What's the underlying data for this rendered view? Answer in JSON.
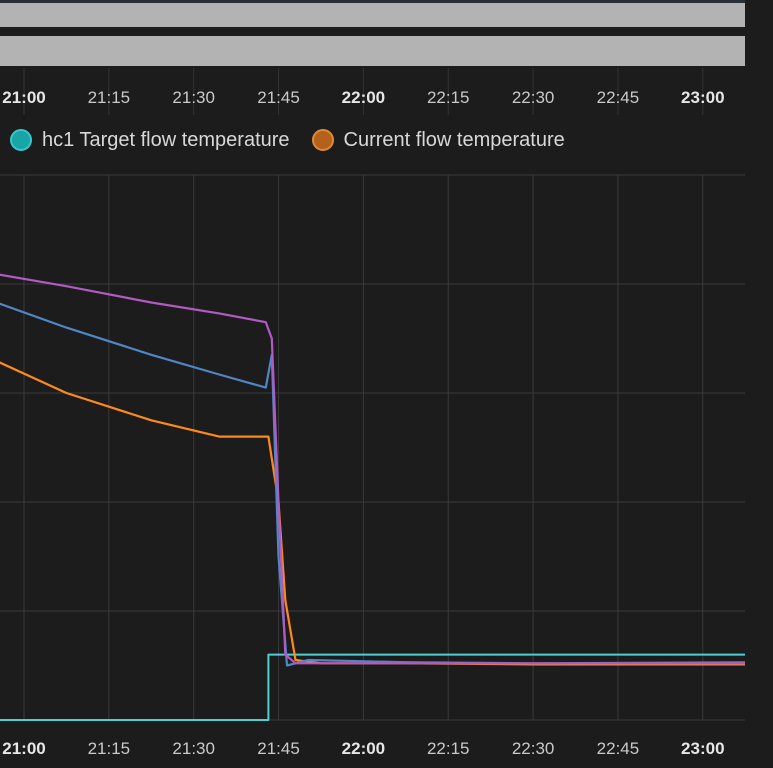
{
  "chart_data": {
    "type": "line",
    "x_ticks": [
      {
        "label": "21:00",
        "major": true
      },
      {
        "label": "21:15",
        "major": false
      },
      {
        "label": "21:30",
        "major": false
      },
      {
        "label": "21:45",
        "major": false
      },
      {
        "label": "22:00",
        "major": true
      },
      {
        "label": "22:15",
        "major": false
      },
      {
        "label": "22:30",
        "major": false
      },
      {
        "label": "22:45",
        "major": false
      },
      {
        "label": "23:00",
        "major": true
      }
    ],
    "legend": [
      {
        "name": "hc1 Target flow temperature",
        "color": "#17a5a7"
      },
      {
        "name": "Current flow temperature",
        "color": "#c0651b"
      }
    ],
    "series": [
      {
        "name": "hc1 Target flow temperature",
        "color": "#4fd0d0",
        "step": true,
        "points": [
          [
            -0.4,
            0.0
          ],
          [
            2.88,
            0.0
          ],
          [
            2.88,
            0.6
          ],
          [
            8.7,
            0.6
          ]
        ]
      },
      {
        "name": "Current flow temperature",
        "color": "#ff8a1c",
        "points": [
          [
            -0.4,
            3.32
          ],
          [
            0.5,
            3.0
          ],
          [
            1.5,
            2.75
          ],
          [
            2.3,
            2.6
          ],
          [
            2.88,
            2.6
          ],
          [
            3.0,
            2.0
          ],
          [
            3.08,
            1.1
          ],
          [
            3.2,
            0.55
          ],
          [
            3.5,
            0.52
          ],
          [
            4.5,
            0.52
          ],
          [
            6.0,
            0.51
          ],
          [
            8.7,
            0.51
          ]
        ]
      },
      {
        "color": "#4f86c6",
        "points": [
          [
            -0.4,
            3.85
          ],
          [
            0.5,
            3.6
          ],
          [
            1.5,
            3.35
          ],
          [
            2.3,
            3.17
          ],
          [
            2.85,
            3.05
          ],
          [
            2.92,
            3.35
          ],
          [
            3.0,
            1.5
          ],
          [
            3.1,
            0.5
          ],
          [
            3.35,
            0.55
          ],
          [
            4.5,
            0.53
          ],
          [
            6.0,
            0.52
          ],
          [
            8.7,
            0.53
          ]
        ]
      },
      {
        "color": "#b25ac3",
        "points": [
          [
            -0.4,
            4.1
          ],
          [
            0.5,
            3.98
          ],
          [
            1.5,
            3.83
          ],
          [
            2.3,
            3.73
          ],
          [
            2.85,
            3.65
          ],
          [
            2.92,
            3.5
          ],
          [
            3.0,
            2.0
          ],
          [
            3.08,
            0.6
          ],
          [
            3.2,
            0.52
          ],
          [
            4.5,
            0.52
          ],
          [
            6.0,
            0.52
          ],
          [
            8.7,
            0.52
          ]
        ]
      }
    ]
  }
}
